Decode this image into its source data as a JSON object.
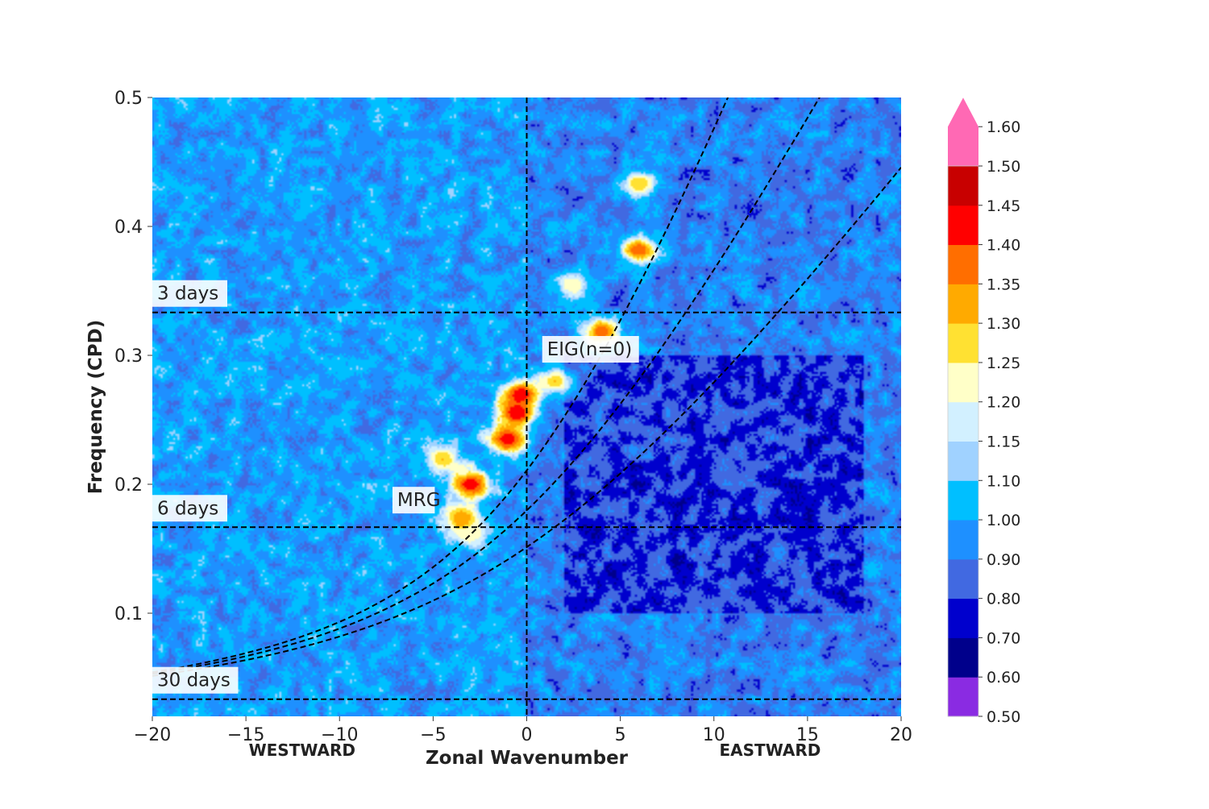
{
  "chart_data": {
    "type": "heatmap",
    "title": "",
    "xlabel": "Zonal Wavenumber",
    "ylabel": "Frequency (CPD)",
    "xlim": [
      -20,
      20
    ],
    "ylim": [
      0.02,
      0.5
    ],
    "xticks": [
      -20,
      -15,
      -10,
      -5,
      0,
      5,
      10,
      15,
      20
    ],
    "xtick_labels": [
      "−20",
      "−15",
      "−10",
      "−5",
      "0",
      "5",
      "10",
      "15",
      "20"
    ],
    "yticks": [
      0.1,
      0.2,
      0.3,
      0.4,
      0.5
    ],
    "ytick_labels": [
      "0.1",
      "0.2",
      "0.3",
      "0.4",
      "0.5"
    ],
    "direction_labels": {
      "west": "WESTWARD",
      "east": "EASTWARD"
    },
    "period_lines": [
      {
        "label": "3 days",
        "frequency": 0.3333
      },
      {
        "label": "6 days",
        "frequency": 0.1667
      },
      {
        "label": "30 days",
        "frequency": 0.0333
      }
    ],
    "dispersion_labels": [
      {
        "label": "EIG(n=0)",
        "x": 1.0,
        "y": 0.3
      },
      {
        "label": "MRG",
        "x": -7.0,
        "y": 0.183
      }
    ],
    "colorbar": {
      "levels": [
        0.5,
        0.6,
        0.7,
        0.8,
        0.9,
        1.0,
        1.1,
        1.15,
        1.2,
        1.25,
        1.3,
        1.35,
        1.4,
        1.45,
        1.5,
        1.6
      ],
      "tick_labels": [
        "0.50",
        "0.60",
        "0.70",
        "0.80",
        "0.90",
        "1.00",
        "1.10",
        "1.15",
        "1.20",
        "1.25",
        "1.30",
        "1.35",
        "1.40",
        "1.45",
        "1.50",
        "1.60"
      ],
      "colors": [
        "#8a2be2",
        "#00008b",
        "#0000cd",
        "#4169e1",
        "#1e90ff",
        "#00bfff",
        "#a0d2ff",
        "#d2f0ff",
        "#ffffc8",
        "#ffe132",
        "#ffaa00",
        "#ff6e00",
        "#ff0000",
        "#c80000",
        "#ff69b4"
      ],
      "extend": "max"
    },
    "field_description": {
      "background": [
        0.75,
        0.95
      ],
      "equatorial_band_ridges": [
        {
          "x": -4.5,
          "y": 0.22,
          "value": 1.3
        },
        {
          "x": -3.0,
          "y": 0.2,
          "value": 1.45
        },
        {
          "x": -1.0,
          "y": 0.235,
          "value": 1.45
        },
        {
          "x": -0.5,
          "y": 0.255,
          "value": 1.45
        },
        {
          "x": -0.3,
          "y": 0.27,
          "value": 1.45
        },
        {
          "x": 1.5,
          "y": 0.28,
          "value": 1.3
        },
        {
          "x": 2.5,
          "y": 0.355,
          "value": 1.25
        },
        {
          "x": 4.0,
          "y": 0.318,
          "value": 1.4
        },
        {
          "x": 6.0,
          "y": 0.382,
          "value": 1.4
        },
        {
          "x": 6.0,
          "y": 0.433,
          "value": 1.3
        },
        {
          "x": -3.5,
          "y": 0.173,
          "value": 1.35
        },
        {
          "x": -3.0,
          "y": 0.162,
          "value": 1.25
        }
      ],
      "eastward_minimum": {
        "x": [
          2,
          18
        ],
        "y": [
          0.1,
          0.3
        ],
        "value": 0.65
      }
    }
  }
}
